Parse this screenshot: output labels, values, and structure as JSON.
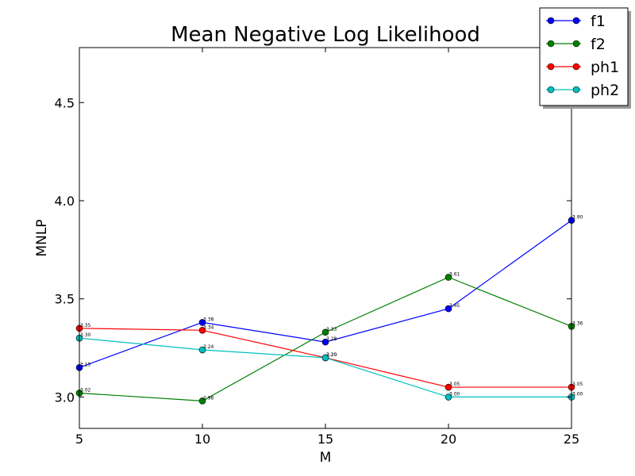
{
  "chart_data": {
    "type": "line",
    "title": "Mean Negative Log Likelihood",
    "xlabel": "M",
    "ylabel": "MNLP",
    "x": [
      5,
      10,
      15,
      20,
      25
    ],
    "xlim": [
      5,
      25
    ],
    "ylim": [
      2.84,
      4.78
    ],
    "xticks": [
      "5",
      "10",
      "15",
      "20",
      "25"
    ],
    "yticks": [
      "3.0",
      "3.5",
      "4.0",
      "4.5"
    ],
    "ytick_values": [
      3.0,
      3.5,
      4.0,
      4.5
    ],
    "grid": false,
    "legend_position": "top-right",
    "series": [
      {
        "name": "f1",
        "color": "#0000ff",
        "values": [
          3.15,
          3.38,
          3.28,
          3.45,
          3.9
        ],
        "labels": [
          "3.15",
          "3.38",
          "3.28",
          "3.45",
          "3.90"
        ]
      },
      {
        "name": "f2",
        "color": "#008000",
        "values": [
          3.02,
          2.98,
          3.33,
          3.61,
          3.36
        ],
        "labels": [
          "3.02",
          "2.98",
          "3.33",
          "3.61",
          "3.36"
        ]
      },
      {
        "name": "ph1",
        "color": "#ff0000",
        "values": [
          3.35,
          3.34,
          3.2,
          3.05,
          3.05
        ],
        "labels": [
          "3.35",
          "3.34",
          "3.20",
          "3.05",
          "3.05"
        ]
      },
      {
        "name": "ph2",
        "color": "#00bfbf",
        "values": [
          3.3,
          3.24,
          3.2,
          3.0,
          3.0
        ],
        "labels": [
          "3.30",
          "3.24",
          "3.20",
          "3.00",
          "3.00"
        ]
      }
    ]
  }
}
